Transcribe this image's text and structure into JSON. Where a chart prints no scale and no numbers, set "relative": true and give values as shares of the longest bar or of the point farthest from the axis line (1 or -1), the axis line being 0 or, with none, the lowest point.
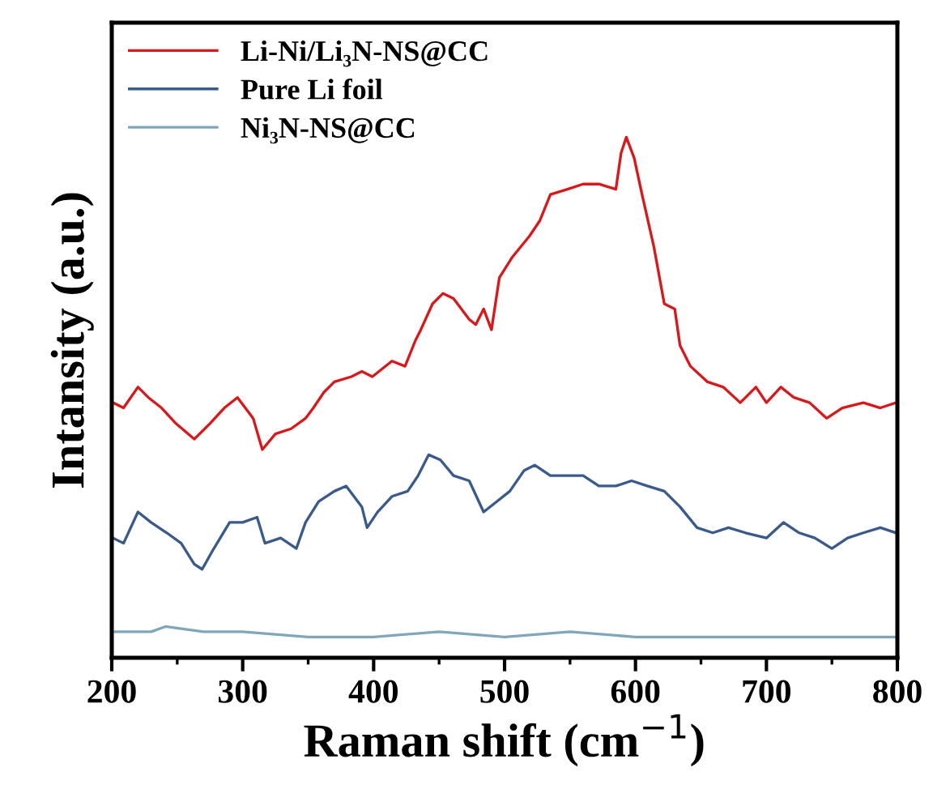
{
  "chart_data": {
    "type": "line",
    "relative": true,
    "xlabel": "Raman shift (cm$^{−1}$)",
    "ylabel": "Intansity (a.u.)",
    "xlim": [
      200,
      800
    ],
    "xticks": [
      200,
      300,
      400,
      500,
      600,
      700,
      800
    ],
    "legend": "top left",
    "grid": false,
    "series": [
      {
        "name": "Li-Ni/Li₃N-NS@CC",
        "color": "#d7191c",
        "x": [
          201,
          209,
          220,
          228,
          238,
          249,
          263,
          275,
          286,
          296,
          308,
          315,
          325,
          337,
          348,
          354,
          362,
          370,
          383,
          391,
          399,
          414,
          424,
          432,
          436,
          445,
          453,
          461,
          473,
          478,
          484,
          490,
          496,
          506,
          519,
          527,
          535,
          548,
          560,
          572,
          585,
          589,
          593,
          599,
          605,
          614,
          622,
          630,
          634,
          642,
          655,
          667,
          680,
          692,
          700,
          711,
          721,
          733,
          746,
          758,
          774,
          787,
          799
        ],
        "values": [
          0.49,
          0.48,
          0.52,
          0.5,
          0.48,
          0.45,
          0.42,
          0.45,
          0.48,
          0.5,
          0.46,
          0.4,
          0.43,
          0.44,
          0.46,
          0.48,
          0.51,
          0.53,
          0.54,
          0.55,
          0.54,
          0.57,
          0.56,
          0.61,
          0.63,
          0.68,
          0.7,
          0.69,
          0.65,
          0.64,
          0.67,
          0.63,
          0.73,
          0.77,
          0.81,
          0.84,
          0.89,
          0.9,
          0.91,
          0.91,
          0.9,
          0.97,
          1.0,
          0.96,
          0.89,
          0.79,
          0.68,
          0.67,
          0.6,
          0.56,
          0.53,
          0.52,
          0.49,
          0.52,
          0.49,
          0.52,
          0.5,
          0.49,
          0.46,
          0.48,
          0.49,
          0.48,
          0.49
        ]
      },
      {
        "name": "Pure Li foil",
        "color": "#3a5a8c",
        "x": [
          201,
          209,
          220,
          230,
          242,
          253,
          263,
          269,
          278,
          290,
          300,
          311,
          317,
          329,
          341,
          348,
          358,
          370,
          379,
          391,
          395,
          403,
          414,
          426,
          434,
          442,
          451,
          461,
          473,
          484,
          494,
          504,
          515,
          523,
          535,
          548,
          560,
          572,
          585,
          597,
          609,
          622,
          634,
          647,
          659,
          671,
          684,
          700,
          713,
          725,
          737,
          750,
          762,
          774,
          787,
          799
        ],
        "values": [
          0.23,
          0.22,
          0.28,
          0.26,
          0.24,
          0.22,
          0.18,
          0.17,
          0.21,
          0.26,
          0.26,
          0.27,
          0.22,
          0.23,
          0.21,
          0.26,
          0.3,
          0.32,
          0.33,
          0.29,
          0.25,
          0.28,
          0.31,
          0.32,
          0.35,
          0.39,
          0.38,
          0.35,
          0.34,
          0.28,
          0.3,
          0.32,
          0.36,
          0.37,
          0.35,
          0.35,
          0.35,
          0.33,
          0.33,
          0.34,
          0.33,
          0.32,
          0.29,
          0.25,
          0.24,
          0.25,
          0.24,
          0.23,
          0.26,
          0.24,
          0.23,
          0.21,
          0.23,
          0.24,
          0.25,
          0.24
        ]
      },
      {
        "name": "Ni₃N-NS@CC",
        "color": "#7fa7b9",
        "x": [
          201,
          230,
          241,
          270,
          300,
          350,
          400,
          450,
          500,
          550,
          600,
          650,
          700,
          750,
          799
        ],
        "values": [
          0.05,
          0.05,
          0.06,
          0.05,
          0.05,
          0.04,
          0.04,
          0.05,
          0.04,
          0.05,
          0.04,
          0.04,
          0.04,
          0.04,
          0.04
        ]
      }
    ]
  }
}
